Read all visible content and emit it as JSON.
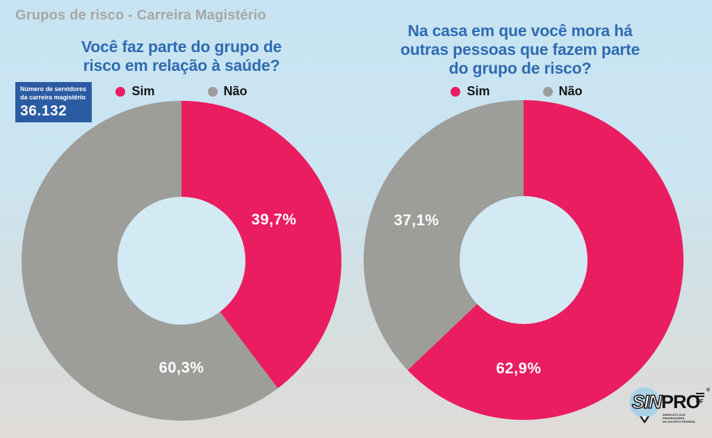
{
  "header": {
    "title": "Grupos de risco - Carreira Magistério"
  },
  "info_box": {
    "caption": "Número de servidores\nda carreira magistério",
    "value": "36.132"
  },
  "colors": {
    "accent_pink": "#EA1D60",
    "neutral_gray": "#9D9D9A",
    "title_blue": "#2E6BB2",
    "header_gray": "#A7A7A4",
    "infobox_blue": "#2B5BA3",
    "background_top": "#C8E3F1",
    "background_bottom": "#DFDBD8",
    "donut_hole": "#D3E9F3",
    "percent_label_white": "#FFFFFF",
    "legend_text": "#141414",
    "logo_circle_blue": "#A9D2E8"
  },
  "chart_data": [
    {
      "type": "pie",
      "variant": "donut",
      "title": "Você faz parte do grupo de\nrisco em relação à saúde?",
      "legend_position": "top",
      "direction": "clockwise",
      "start_angle": "12-oclock",
      "slices": [
        {
          "name": "Sim",
          "value": 39.7,
          "label": "39,7%",
          "color": "#EA1D60"
        },
        {
          "name": "Não",
          "value": 60.3,
          "label": "60,3%",
          "color": "#9D9D9A"
        }
      ]
    },
    {
      "type": "pie",
      "variant": "donut",
      "title": "Na casa em que você mora há\noutras pessoas que fazem parte\ndo grupo de risco?",
      "legend_position": "top",
      "direction": "clockwise",
      "start_angle": "12-oclock",
      "slices": [
        {
          "name": "Sim",
          "value": 62.9,
          "label": "62,9%",
          "color": "#EA1D60"
        },
        {
          "name": "Não",
          "value": 37.1,
          "label": "37,1%",
          "color": "#9D9D9A"
        }
      ]
    }
  ],
  "logo": {
    "sin": "SIN",
    "pro": "PRO",
    "df": "DF",
    "registered": "®",
    "tagline": "Sindicato dos Professores\nno Distrito Federal"
  }
}
